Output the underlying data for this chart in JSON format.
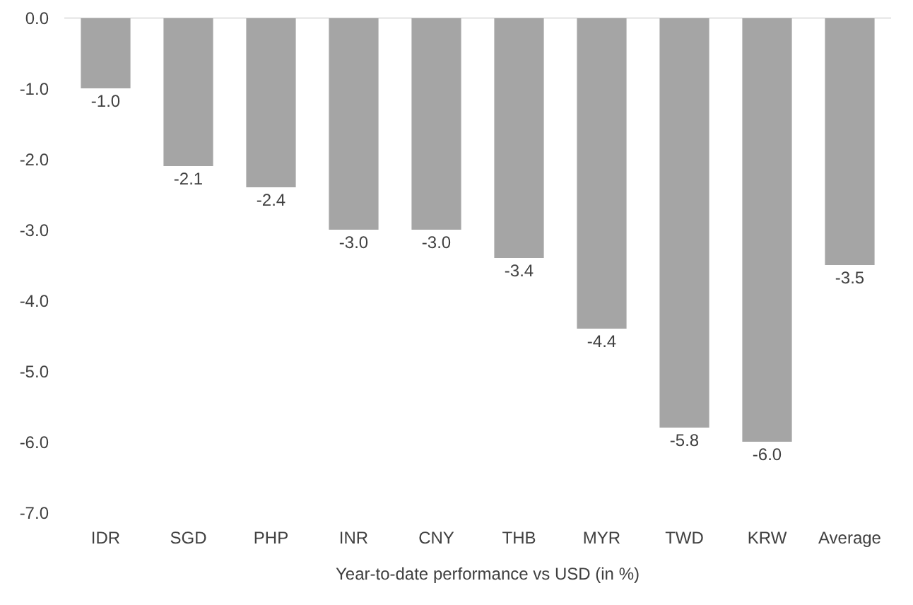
{
  "chart_data": {
    "type": "bar",
    "categories": [
      "IDR",
      "SGD",
      "PHP",
      "INR",
      "CNY",
      "THB",
      "MYR",
      "TWD",
      "KRW",
      "Average"
    ],
    "series": [
      {
        "name": "Year-to-date performance vs USD (in %)",
        "color": "#a5a5a5",
        "values": [
          -1.0,
          -2.1,
          -2.4,
          -3.0,
          -3.0,
          -3.4,
          -4.4,
          -5.8,
          -6.0,
          -3.5
        ]
      }
    ],
    "ylim": [
      -7,
      0
    ],
    "yticks": [
      {
        "value": 0,
        "label": "0.0"
      },
      {
        "value": -1,
        "label": "-1.0"
      },
      {
        "value": -2,
        "label": "-2.0"
      },
      {
        "value": -3,
        "label": "-3.0"
      },
      {
        "value": -4,
        "label": "-4.0"
      },
      {
        "value": -5,
        "label": "-5.0"
      },
      {
        "value": -6,
        "label": "-6.0"
      },
      {
        "value": -7,
        "label": "-7.0"
      }
    ],
    "value_labels": [
      "-1.0",
      "-2.1",
      "-2.4",
      "-3.0",
      "-3.0",
      "-3.4",
      "-4.4",
      "-5.8",
      "-6.0",
      "-3.5"
    ],
    "grid": false,
    "legend": "bottom"
  }
}
